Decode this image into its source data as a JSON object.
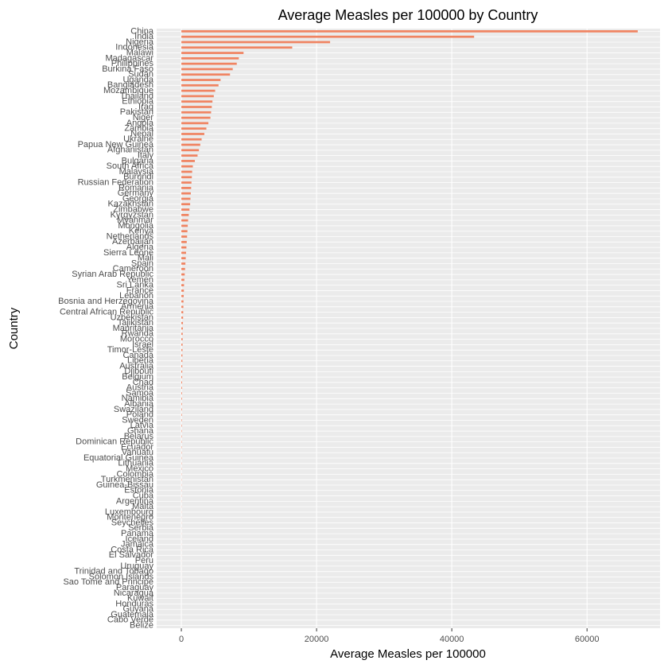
{
  "chart_data": {
    "type": "hbar",
    "title": "Average Measles per 100000 by Country",
    "x_label": "Average Measles per 100000",
    "y_label": "Country",
    "color": "#f08462",
    "grid": true,
    "xlim": [
      -3650,
      70800
    ],
    "xticks": [
      0,
      20000,
      40000,
      60000
    ],
    "categories": [
      "China",
      "India",
      "Nigeria",
      "Indonesia",
      "Malawi",
      "Madagascar",
      "Philippines",
      "Burkina Faso",
      "Sudan",
      "Uganda",
      "Bangladesh",
      "Mozambique",
      "Thailand",
      "Ethiopia",
      "Iraq",
      "Pakistan",
      "Niger",
      "Angola",
      "Zambia",
      "Nepal",
      "Ukraine",
      "Papua New Guinea",
      "Afghanistan",
      "Italy",
      "Bulgaria",
      "South Africa",
      "Malaysia",
      "Burundi",
      "Russian Federation",
      "Romania",
      "Germany",
      "Georgia",
      "Kazakhstan",
      "Zimbabwe",
      "Kyrgyzstan",
      "Myanmar",
      "Mongolia",
      "Kenya",
      "Netherlands",
      "Azerbaijan",
      "Algeria",
      "Sierra Leone",
      "Mali",
      "Spain",
      "Cameroon",
      "Syrian Arab Republic",
      "Yemen",
      "Sri Lanka",
      "France",
      "Lebanon",
      "Bosnia and Herzegovina",
      "Armenia",
      "Central African Republic",
      "Uzbekistan",
      "Tajikistan",
      "Mauritania",
      "Rwanda",
      "Morocco",
      "Israel",
      "Timor-Leste",
      "Canada",
      "Liberia",
      "Australia",
      "Djibouti",
      "Belgium",
      "Chad",
      "Austria",
      "Samoa",
      "Namibia",
      "Albania",
      "Swaziland",
      "Poland",
      "Sweden",
      "Latvia",
      "Ghana",
      "Belarus",
      "Dominican Republic",
      "Ecuador",
      "Vanuatu",
      "Equatorial Guinea",
      "Lithuania",
      "Mexico",
      "Colombia",
      "Turkmenistan",
      "Guinea-Bissau",
      "Estonia",
      "Cuba",
      "Argentina",
      "Malta",
      "Luxembourg",
      "Montenegro",
      "Seychelles",
      "Serbia",
      "Panama",
      "Iceland",
      "Jamaica",
      "Costa Rica",
      "El Salvador",
      "Peru",
      "Uruguay",
      "Trinidad and Tobago",
      "Solomon Islands",
      "Sao Tome and Principe",
      "Paraguay",
      "Nicaragua",
      "Kuwait",
      "Honduras",
      "Guyana",
      "Guatemala",
      "Cabo Verde",
      "Belize"
    ],
    "values": [
      67500,
      43300,
      22000,
      16400,
      9200,
      8500,
      8200,
      7600,
      7200,
      5800,
      5500,
      5000,
      4800,
      4600,
      4500,
      4400,
      4300,
      4000,
      3700,
      3400,
      3000,
      2800,
      2600,
      2400,
      2000,
      1700,
      1600,
      1550,
      1500,
      1450,
      1400,
      1350,
      1300,
      1200,
      1100,
      1000,
      950,
      900,
      850,
      800,
      750,
      700,
      650,
      600,
      550,
      500,
      450,
      400,
      380,
      350,
      320,
      300,
      280,
      260,
      240,
      220,
      200,
      190,
      180,
      170,
      160,
      150,
      140,
      130,
      120,
      110,
      100,
      95,
      90,
      85,
      80,
      75,
      70,
      65,
      60,
      55,
      50,
      47,
      44,
      41,
      38,
      35,
      32,
      30,
      28,
      26,
      24,
      22,
      20,
      18,
      16,
      15,
      14,
      13,
      12,
      11,
      10,
      9,
      8,
      7,
      6,
      5,
      4.5,
      4,
      3.5,
      3,
      2.5,
      2,
      1.5,
      1,
      0.5
    ]
  }
}
